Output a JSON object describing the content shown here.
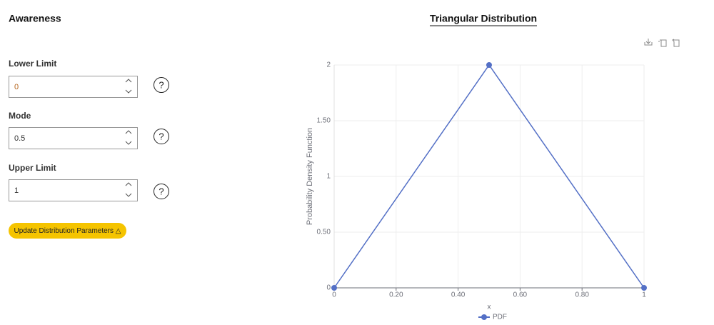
{
  "panel": {
    "title": "Awareness",
    "fields": [
      {
        "label": "Lower Limit",
        "value": "0"
      },
      {
        "label": "Mode",
        "value": "0.5"
      },
      {
        "label": "Upper Limit",
        "value": "1"
      }
    ],
    "button": "Update Distribution Parameters △"
  },
  "chart_data": {
    "type": "line",
    "title": "Triangular Distribution",
    "x_label": "x",
    "y_label": "Probability Density Function",
    "x": [
      0,
      0.5,
      1
    ],
    "series": [
      {
        "name": "PDF",
        "color": "#5470c6",
        "values": [
          0,
          2,
          0
        ]
      }
    ],
    "xlim": [
      0,
      1
    ],
    "xticks": [
      0,
      {
        "value": 0.2,
        "label": "0.20"
      },
      {
        "value": 0.4,
        "label": "0.40"
      },
      {
        "value": 0.6,
        "label": "0.60"
      },
      {
        "value": 0.8,
        "label": "0.80"
      },
      1
    ],
    "ylim": [
      0,
      2
    ],
    "yticks": [
      0,
      {
        "value": 0.5,
        "label": "0.50"
      },
      1,
      {
        "value": 1.5,
        "label": "1.50"
      },
      2
    ],
    "grid": true,
    "legend": "bottom"
  }
}
